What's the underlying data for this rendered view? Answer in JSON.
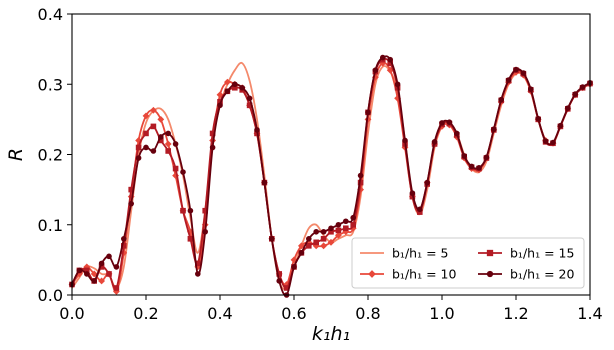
{
  "chart_data": {
    "type": "line",
    "xlabel": "k₁h₁",
    "ylabel": "R",
    "xlim": [
      0.0,
      1.4
    ],
    "ylim": [
      0.0,
      0.4
    ],
    "xticks": [
      "0.0",
      "0.2",
      "0.4",
      "0.6",
      "0.8",
      "1.0",
      "1.2",
      "1.4"
    ],
    "yticks": [
      "0.0",
      "0.1",
      "0.2",
      "0.3",
      "0.4"
    ],
    "grid": false,
    "legend_position": "lower-right",
    "series": [
      {
        "name": "b₁/h₁ = 5",
        "color": "#f4896b",
        "marker": "none",
        "x": [
          0.0,
          0.02,
          0.04,
          0.06,
          0.08,
          0.1,
          0.12,
          0.14,
          0.16,
          0.18,
          0.2,
          0.22,
          0.24,
          0.26,
          0.28,
          0.3,
          0.32,
          0.34,
          0.36,
          0.38,
          0.4,
          0.42,
          0.44,
          0.46,
          0.48,
          0.5,
          0.52,
          0.54,
          0.56,
          0.58,
          0.6,
          0.62,
          0.64,
          0.66,
          0.68,
          0.7,
          0.72,
          0.74,
          0.76,
          0.78,
          0.8,
          0.82,
          0.84,
          0.86,
          0.88,
          0.9,
          0.92,
          0.94,
          0.96,
          0.98,
          1.0,
          1.02,
          1.04,
          1.06,
          1.08,
          1.1,
          1.12,
          1.14,
          1.16,
          1.18,
          1.2,
          1.22,
          1.24,
          1.26,
          1.28,
          1.3,
          1.32,
          1.34,
          1.36,
          1.38,
          1.4
        ],
        "y": [
          0.01,
          0.025,
          0.04,
          0.038,
          0.03,
          0.028,
          0.01,
          0.04,
          0.12,
          0.2,
          0.245,
          0.262,
          0.265,
          0.25,
          0.215,
          0.17,
          0.11,
          0.06,
          0.12,
          0.22,
          0.27,
          0.3,
          0.32,
          0.33,
          0.305,
          0.25,
          0.17,
          0.08,
          0.02,
          0.01,
          0.04,
          0.07,
          0.095,
          0.1,
          0.085,
          0.075,
          0.08,
          0.085,
          0.09,
          0.14,
          0.23,
          0.3,
          0.325,
          0.318,
          0.29,
          0.22,
          0.14,
          0.115,
          0.15,
          0.21,
          0.24,
          0.245,
          0.23,
          0.2,
          0.18,
          0.175,
          0.19,
          0.23,
          0.27,
          0.3,
          0.315,
          0.312,
          0.29,
          0.25,
          0.22,
          0.215,
          0.24,
          0.265,
          0.285,
          0.295,
          0.3
        ]
      },
      {
        "name": "b₁/h₁ = 10",
        "color": "#e8483a",
        "marker": "diamond",
        "x": [
          0.0,
          0.02,
          0.04,
          0.06,
          0.08,
          0.1,
          0.12,
          0.14,
          0.16,
          0.18,
          0.2,
          0.22,
          0.24,
          0.26,
          0.28,
          0.3,
          0.32,
          0.34,
          0.36,
          0.38,
          0.4,
          0.42,
          0.44,
          0.46,
          0.48,
          0.5,
          0.52,
          0.54,
          0.56,
          0.58,
          0.6,
          0.62,
          0.64,
          0.66,
          0.68,
          0.7,
          0.72,
          0.74,
          0.76,
          0.78,
          0.8,
          0.82,
          0.84,
          0.86,
          0.88,
          0.9,
          0.92,
          0.94,
          0.96,
          0.98,
          1.0,
          1.02,
          1.04,
          1.06,
          1.08,
          1.1,
          1.12,
          1.14,
          1.16,
          1.18,
          1.2,
          1.22,
          1.24,
          1.26,
          1.28,
          1.3,
          1.32,
          1.34,
          1.36,
          1.38,
          1.4
        ],
        "y": [
          0.015,
          0.03,
          0.04,
          0.03,
          0.02,
          0.03,
          0.005,
          0.06,
          0.14,
          0.22,
          0.255,
          0.263,
          0.25,
          0.215,
          0.17,
          0.12,
          0.09,
          0.04,
          0.1,
          0.22,
          0.285,
          0.303,
          0.3,
          0.295,
          0.27,
          0.23,
          0.16,
          0.08,
          0.03,
          0.015,
          0.05,
          0.07,
          0.075,
          0.07,
          0.07,
          0.075,
          0.085,
          0.09,
          0.095,
          0.15,
          0.25,
          0.31,
          0.33,
          0.32,
          0.28,
          0.21,
          0.14,
          0.12,
          0.16,
          0.215,
          0.24,
          0.242,
          0.225,
          0.195,
          0.18,
          0.178,
          0.195,
          0.235,
          0.275,
          0.303,
          0.317,
          0.313,
          0.29,
          0.25,
          0.22,
          0.216,
          0.24,
          0.265,
          0.285,
          0.295,
          0.3
        ]
      },
      {
        "name": "b₁/h₁ = 15",
        "color": "#b31b24",
        "marker": "square",
        "x": [
          0.0,
          0.02,
          0.04,
          0.06,
          0.08,
          0.1,
          0.12,
          0.14,
          0.16,
          0.18,
          0.2,
          0.22,
          0.24,
          0.26,
          0.28,
          0.3,
          0.32,
          0.34,
          0.36,
          0.38,
          0.4,
          0.42,
          0.44,
          0.46,
          0.48,
          0.5,
          0.52,
          0.54,
          0.56,
          0.58,
          0.6,
          0.62,
          0.64,
          0.66,
          0.68,
          0.7,
          0.72,
          0.74,
          0.76,
          0.78,
          0.8,
          0.82,
          0.84,
          0.86,
          0.88,
          0.9,
          0.92,
          0.94,
          0.96,
          0.98,
          1.0,
          1.02,
          1.04,
          1.06,
          1.08,
          1.1,
          1.12,
          1.14,
          1.16,
          1.18,
          1.2,
          1.22,
          1.24,
          1.26,
          1.28,
          1.3,
          1.32,
          1.34,
          1.36,
          1.38,
          1.4
        ],
        "y": [
          0.015,
          0.035,
          0.035,
          0.02,
          0.04,
          0.03,
          0.01,
          0.07,
          0.15,
          0.21,
          0.23,
          0.24,
          0.22,
          0.205,
          0.18,
          0.12,
          0.08,
          0.045,
          0.12,
          0.23,
          0.275,
          0.29,
          0.295,
          0.292,
          0.27,
          0.23,
          0.16,
          0.08,
          0.03,
          0.01,
          0.04,
          0.06,
          0.07,
          0.075,
          0.08,
          0.09,
          0.092,
          0.095,
          0.1,
          0.16,
          0.26,
          0.318,
          0.335,
          0.33,
          0.295,
          0.215,
          0.14,
          0.118,
          0.158,
          0.215,
          0.243,
          0.244,
          0.228,
          0.197,
          0.182,
          0.18,
          0.195,
          0.235,
          0.277,
          0.305,
          0.32,
          0.315,
          0.292,
          0.25,
          0.218,
          0.216,
          0.24,
          0.265,
          0.285,
          0.295,
          0.301
        ]
      },
      {
        "name": "b₁/h₁ = 20",
        "color": "#67000d",
        "marker": "circle",
        "x": [
          0.0,
          0.02,
          0.04,
          0.06,
          0.08,
          0.1,
          0.12,
          0.14,
          0.16,
          0.18,
          0.2,
          0.22,
          0.24,
          0.26,
          0.28,
          0.3,
          0.32,
          0.34,
          0.36,
          0.38,
          0.4,
          0.42,
          0.44,
          0.46,
          0.48,
          0.5,
          0.52,
          0.54,
          0.56,
          0.58,
          0.6,
          0.62,
          0.64,
          0.66,
          0.68,
          0.7,
          0.72,
          0.74,
          0.76,
          0.78,
          0.8,
          0.82,
          0.84,
          0.86,
          0.88,
          0.9,
          0.92,
          0.94,
          0.96,
          0.98,
          1.0,
          1.02,
          1.04,
          1.06,
          1.08,
          1.1,
          1.12,
          1.14,
          1.16,
          1.18,
          1.2,
          1.22,
          1.24,
          1.26,
          1.28,
          1.3,
          1.32,
          1.34,
          1.36,
          1.38,
          1.4
        ],
        "y": [
          0.015,
          0.035,
          0.03,
          0.02,
          0.045,
          0.055,
          0.04,
          0.08,
          0.13,
          0.195,
          0.21,
          0.205,
          0.225,
          0.23,
          0.215,
          0.175,
          0.12,
          0.03,
          0.09,
          0.21,
          0.27,
          0.29,
          0.3,
          0.295,
          0.28,
          0.235,
          0.16,
          0.08,
          0.02,
          0.0,
          0.04,
          0.06,
          0.08,
          0.09,
          0.09,
          0.095,
          0.1,
          0.105,
          0.11,
          0.17,
          0.26,
          0.32,
          0.338,
          0.335,
          0.3,
          0.22,
          0.145,
          0.122,
          0.16,
          0.218,
          0.245,
          0.246,
          0.23,
          0.198,
          0.183,
          0.181,
          0.196,
          0.236,
          0.278,
          0.306,
          0.321,
          0.316,
          0.293,
          0.251,
          0.219,
          0.217,
          0.241,
          0.266,
          0.286,
          0.296,
          0.302
        ]
      }
    ]
  }
}
